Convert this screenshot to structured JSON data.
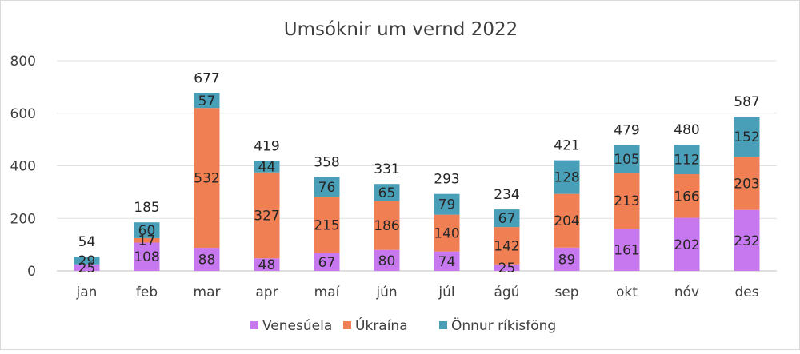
{
  "chart_data": {
    "type": "bar",
    "stacked": true,
    "title": "Umsóknir um vernd 2022",
    "xlabel": "",
    "ylabel": "",
    "ylim": [
      0,
      800
    ],
    "yticks": [
      0,
      200,
      400,
      600,
      800
    ],
    "grid": true,
    "legend_position": "bottom",
    "categories": [
      "jan",
      "feb",
      "mar",
      "apr",
      "maí",
      "jún",
      "júl",
      "ágú",
      "sep",
      "okt",
      "nóv",
      "des"
    ],
    "series": [
      {
        "name": "Venesúela",
        "color": "#c878ef",
        "values": [
          25,
          108,
          88,
          48,
          67,
          80,
          74,
          25,
          89,
          161,
          202,
          232
        ]
      },
      {
        "name": "Úkraína",
        "color": "#f07f54",
        "values": [
          0,
          17,
          532,
          327,
          215,
          186,
          140,
          142,
          204,
          213,
          166,
          203
        ]
      },
      {
        "name": "Önnur ríkisföng",
        "color": "#4a9fb8",
        "values": [
          29,
          60,
          57,
          44,
          76,
          65,
          79,
          67,
          128,
          105,
          112,
          152
        ]
      }
    ],
    "segment_labels": [
      [
        "25",
        "108",
        "88",
        "48",
        "67",
        "80",
        "74",
        "25",
        "89",
        "161",
        "202",
        "232"
      ],
      [
        "",
        "17",
        "532",
        "327",
        "215",
        "186",
        "140",
        "142",
        "204",
        "213",
        "166",
        "203"
      ],
      [
        "29",
        "60",
        "57",
        "44",
        "76",
        "65",
        "79",
        "67",
        "128",
        "105",
        "112",
        "152"
      ]
    ],
    "totals": [
      54,
      185,
      677,
      419,
      358,
      331,
      293,
      234,
      421,
      479,
      480,
      587
    ]
  }
}
